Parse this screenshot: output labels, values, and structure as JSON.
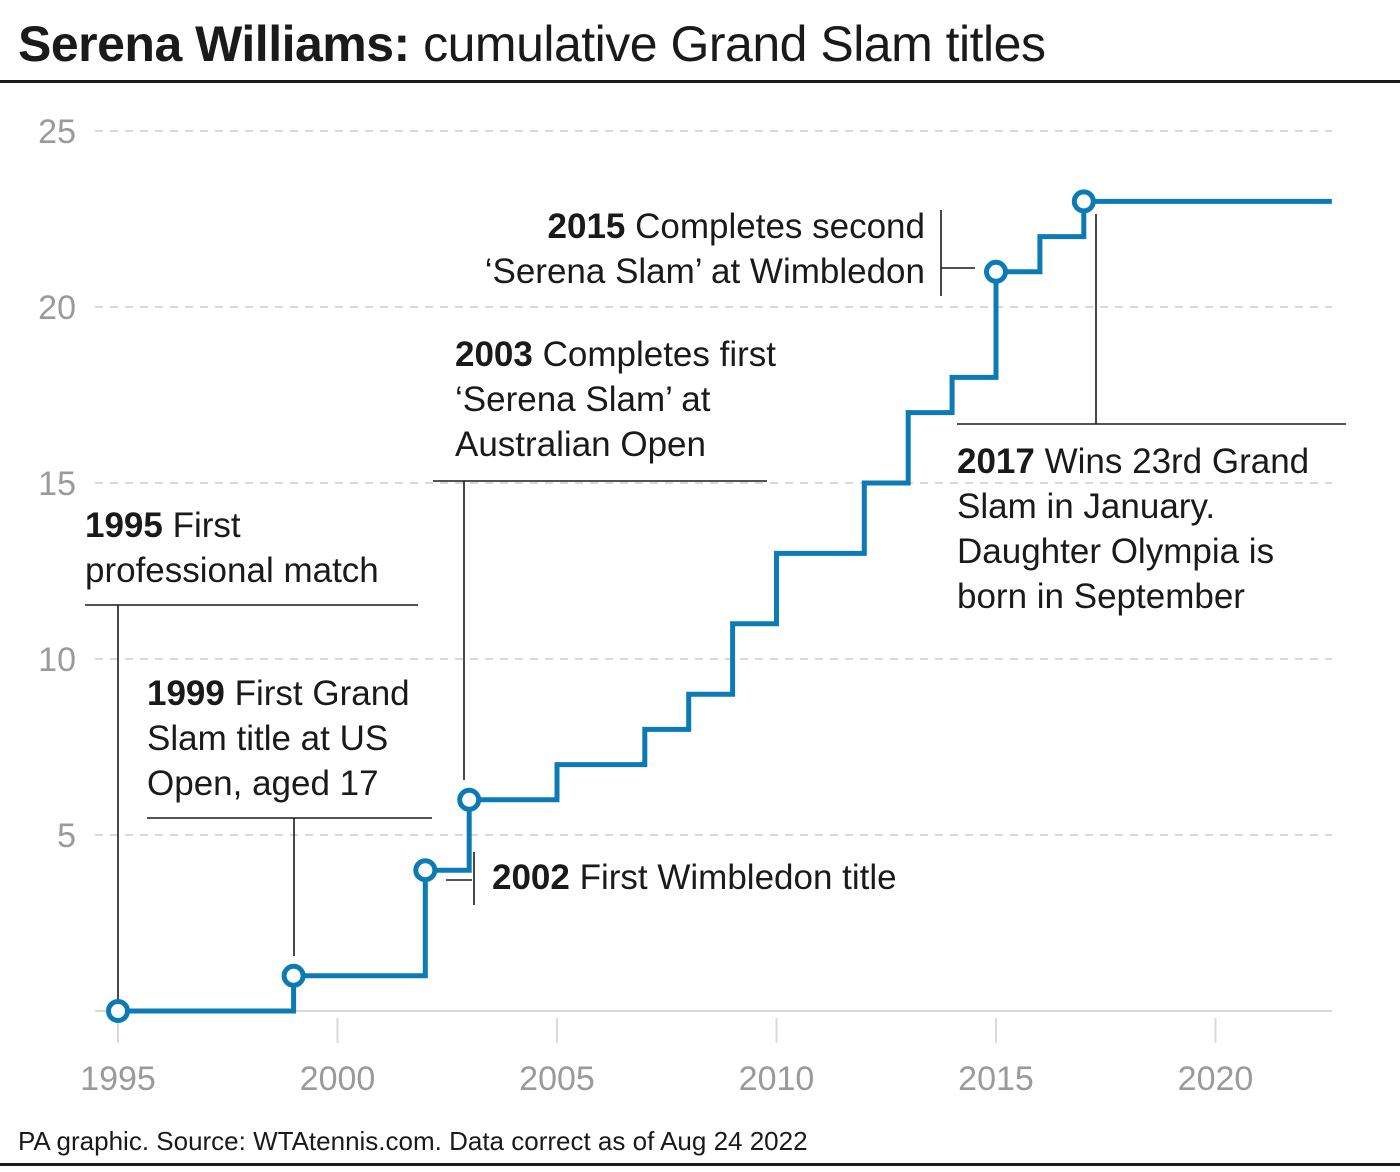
{
  "title": {
    "bold": "Serena Williams:",
    "rest": " cumulative Grand Slam titles"
  },
  "footer": "PA graphic. Source: WTAtennis.com. Data correct as of Aug 24 2022",
  "colors": {
    "line": "#0c7bb3",
    "grid": "#d9d9d9",
    "text": "#1a1a1a",
    "tick": "#9a9a9a",
    "background": "#ffffff"
  },
  "chart_data": {
    "type": "line",
    "step": "after",
    "title": "Serena Williams: cumulative Grand Slam titles",
    "xlabel": "",
    "ylabel": "",
    "xlim": [
      1995,
      2022.65
    ],
    "ylim": [
      0,
      25
    ],
    "x_ticks": [
      1995,
      2000,
      2005,
      2010,
      2015,
      2020
    ],
    "y_ticks": [
      5,
      10,
      15,
      20,
      25
    ],
    "grid": "horizontal dashed",
    "series": [
      {
        "points": [
          {
            "x": 1995,
            "y": 0
          },
          {
            "x": 1999,
            "y": 1
          },
          {
            "x": 2002,
            "y": 4
          },
          {
            "x": 2003,
            "y": 6
          },
          {
            "x": 2005,
            "y": 7
          },
          {
            "x": 2007,
            "y": 8
          },
          {
            "x": 2008,
            "y": 9
          },
          {
            "x": 2009,
            "y": 11
          },
          {
            "x": 2010,
            "y": 13
          },
          {
            "x": 2012,
            "y": 15
          },
          {
            "x": 2013,
            "y": 17
          },
          {
            "x": 2014,
            "y": 18
          },
          {
            "x": 2015,
            "y": 21
          },
          {
            "x": 2016,
            "y": 22
          },
          {
            "x": 2017,
            "y": 23
          },
          {
            "x": 2022.65,
            "y": 23
          }
        ],
        "markers": [
          {
            "x": 1995,
            "y": 0
          },
          {
            "x": 1999,
            "y": 1
          },
          {
            "x": 2002,
            "y": 4
          },
          {
            "x": 2003,
            "y": 6
          },
          {
            "x": 2015,
            "y": 21
          },
          {
            "x": 2017,
            "y": 23
          }
        ]
      }
    ],
    "annotations": [
      {
        "year": "1995",
        "lines": [
          "First",
          "professional match"
        ]
      },
      {
        "year": "1999",
        "lines": [
          "First Grand",
          "Slam title at US",
          "Open, aged 17"
        ]
      },
      {
        "year": "2002",
        "lines": [
          "First Wimbledon title"
        ]
      },
      {
        "year": "2003",
        "lines": [
          "Completes first",
          "‘Serena Slam’ at",
          "Australian Open"
        ]
      },
      {
        "year": "2015",
        "lines": [
          "Completes second",
          "‘Serena Slam’ at Wimbledon"
        ]
      },
      {
        "year": "2017",
        "lines": [
          "Wins 23rd Grand",
          "Slam in January.",
          "Daughter Olympia is",
          "born in September"
        ]
      }
    ]
  }
}
